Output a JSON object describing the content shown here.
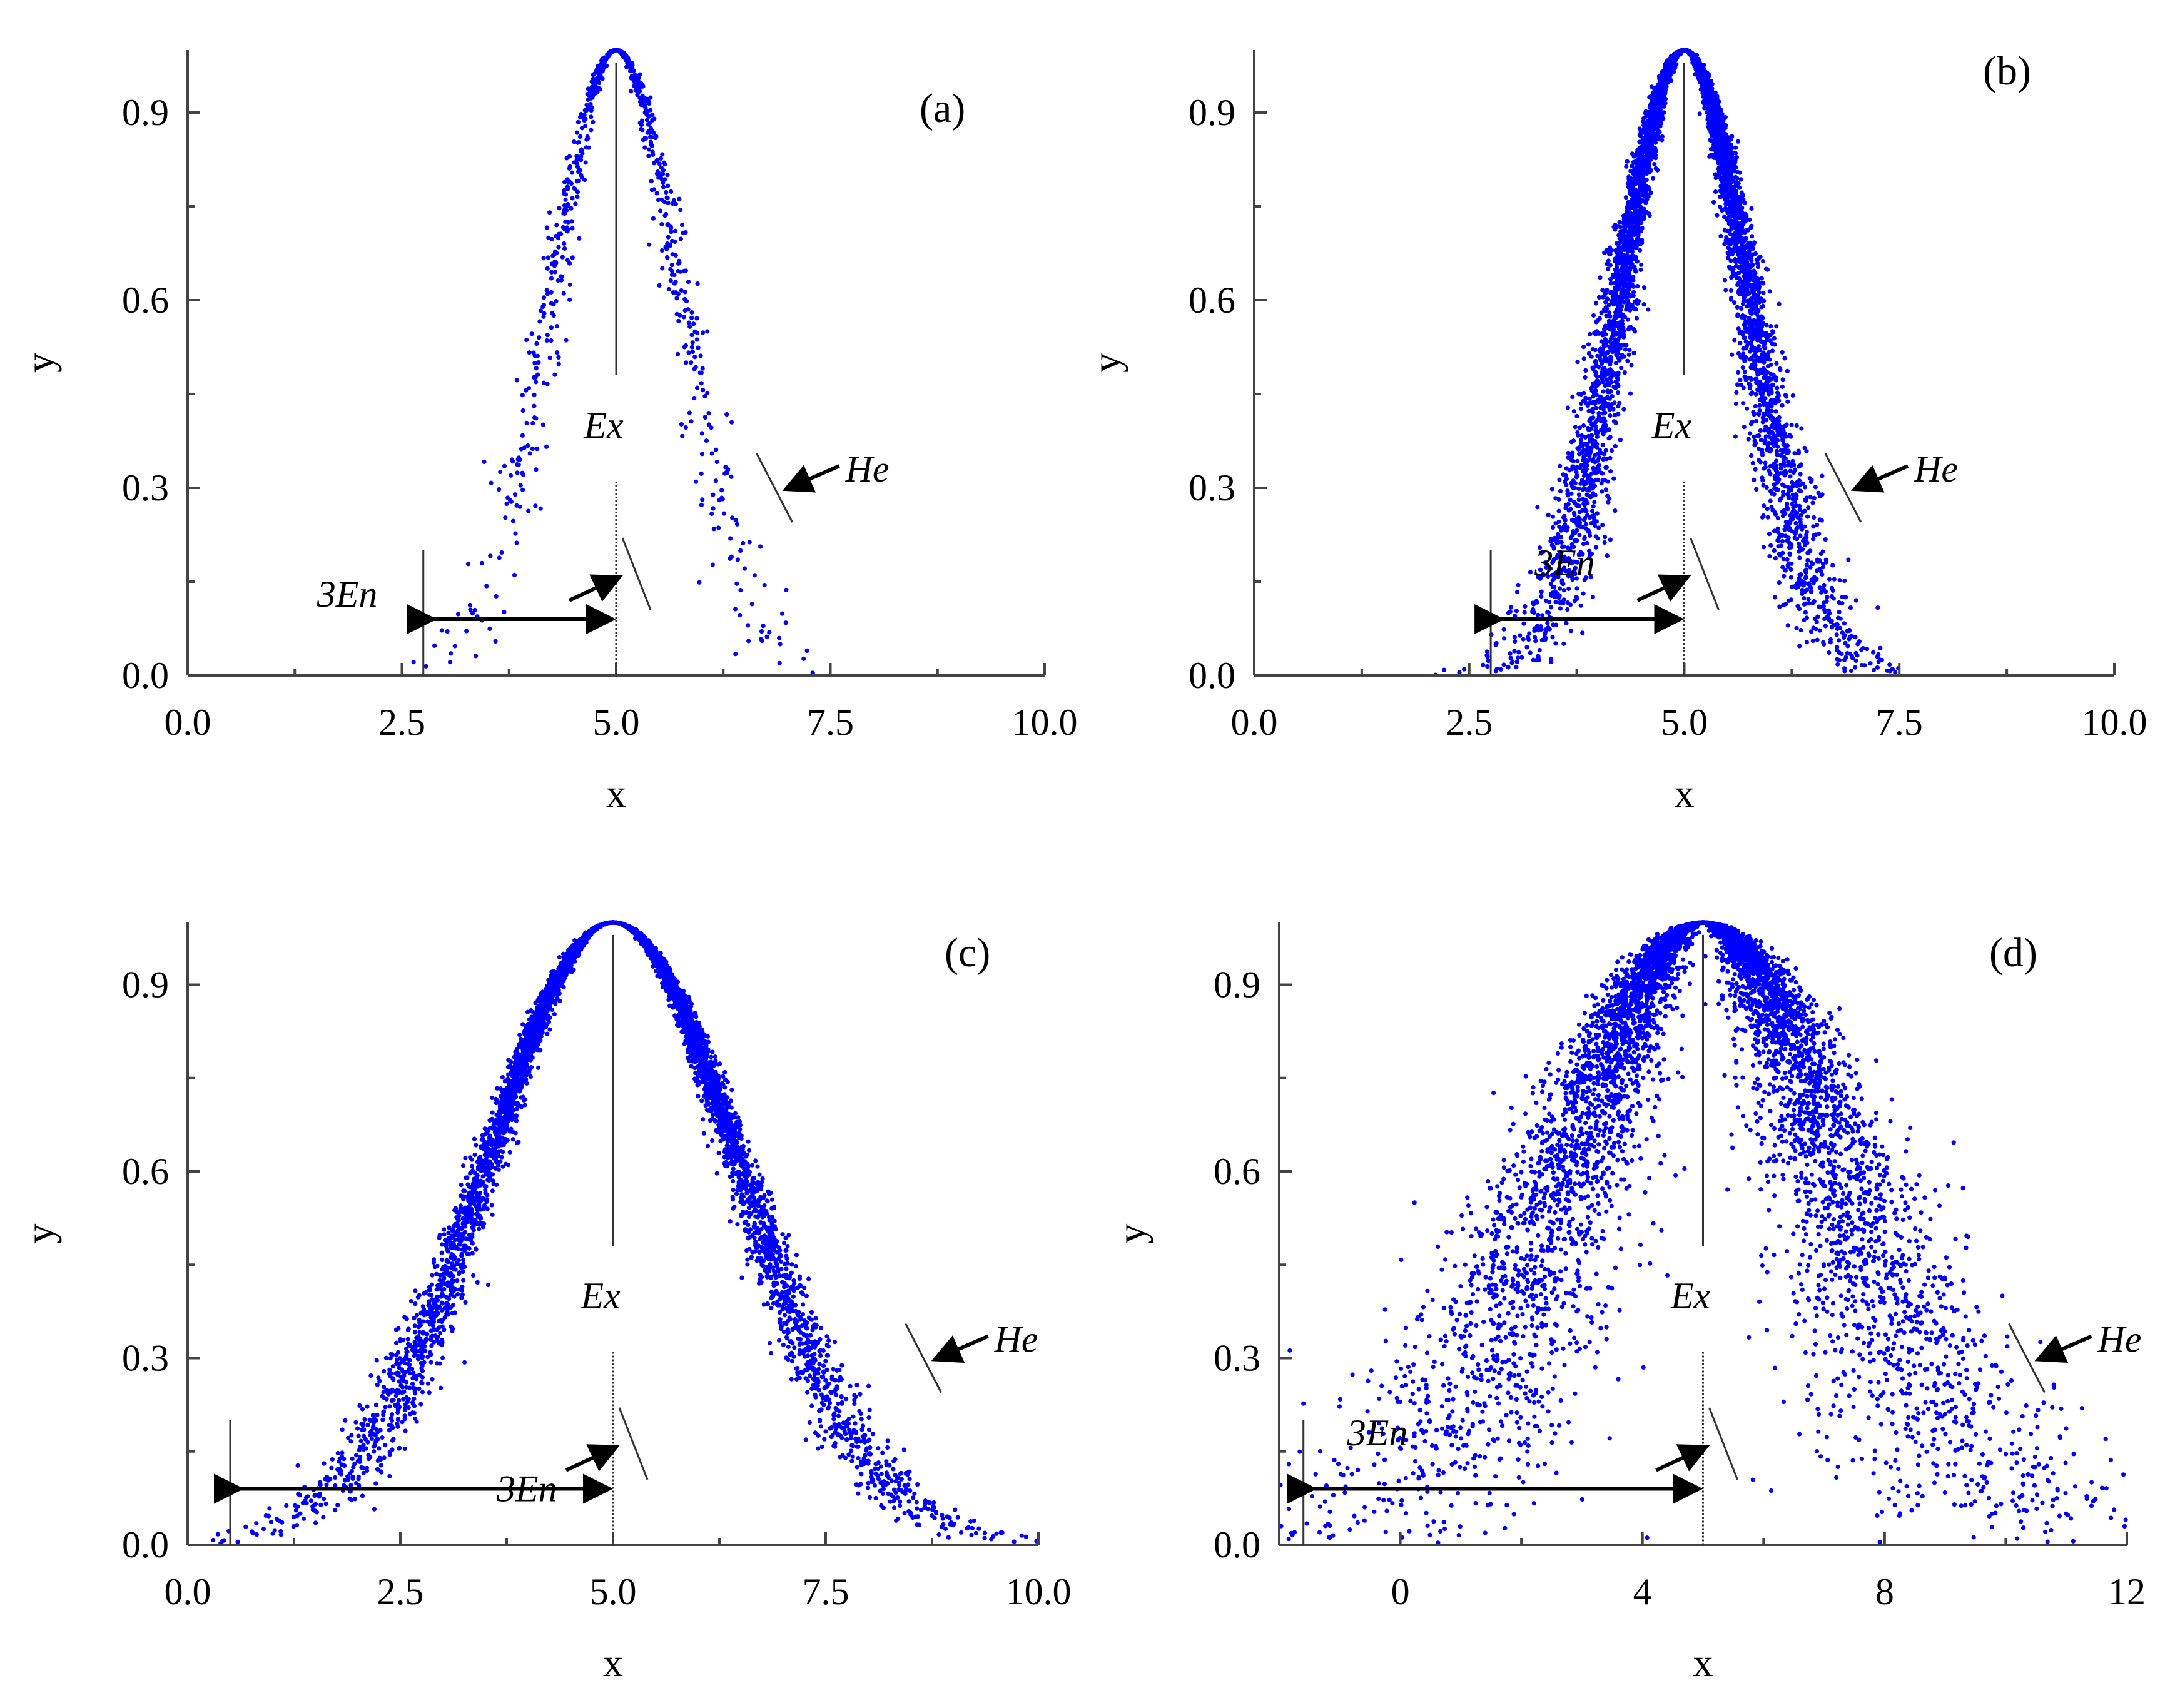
{
  "chart_data": [
    {
      "type": "scatter",
      "panel_label": "(a)",
      "xlabel": "x",
      "ylabel": "y",
      "xlim": [
        0,
        10
      ],
      "ylim": [
        0,
        1
      ],
      "xticks": [
        "0.0",
        "2.5",
        "5.0",
        "7.5",
        "10.0"
      ],
      "xtick_values": [
        0,
        2.5,
        5,
        7.5,
        10
      ],
      "yticks": [
        "0.0",
        "0.3",
        "0.6",
        "0.9"
      ],
      "ytick_values": [
        0,
        0.3,
        0.6,
        0.9
      ],
      "Ex": 5,
      "En": 0.75,
      "He": 0.1,
      "n_points": 800,
      "color": "#0000ff",
      "annotations": {
        "ex": "Ex",
        "en": "3En",
        "he": "He"
      },
      "grid": false
    },
    {
      "type": "scatter",
      "panel_label": "(b)",
      "xlabel": "x",
      "ylabel": "y",
      "xlim": [
        0,
        10
      ],
      "ylim": [
        0,
        1
      ],
      "xticks": [
        "0.0",
        "2.5",
        "5.0",
        "7.5",
        "10.0"
      ],
      "xtick_values": [
        0,
        2.5,
        5,
        7.5,
        10
      ],
      "yticks": [
        "0.0",
        "0.3",
        "0.6",
        "0.9"
      ],
      "ytick_values": [
        0,
        0.3,
        0.6,
        0.9
      ],
      "Ex": 5,
      "En": 0.75,
      "He": 0.1,
      "n_points": 6000,
      "color": "#0000ff",
      "annotations": {
        "ex": "Ex",
        "en": "3En",
        "he": "He"
      },
      "grid": false
    },
    {
      "type": "scatter",
      "panel_label": "(c)",
      "xlabel": "x",
      "ylabel": "y",
      "xlim": [
        0,
        10
      ],
      "ylim": [
        0,
        1
      ],
      "xticks": [
        "0.0",
        "2.5",
        "5.0",
        "7.5",
        "10.0"
      ],
      "xtick_values": [
        0,
        2.5,
        5,
        7.5,
        10
      ],
      "yticks": [
        "0.0",
        "0.3",
        "0.6",
        "0.9"
      ],
      "ytick_values": [
        0,
        0.3,
        0.6,
        0.9
      ],
      "Ex": 5,
      "En": 1.5,
      "He": 0.1,
      "n_points": 6000,
      "color": "#0000ff",
      "annotations": {
        "ex": "Ex",
        "en": "3En",
        "he": "He"
      },
      "grid": false
    },
    {
      "type": "scatter",
      "panel_label": "(d)",
      "xlabel": "x",
      "ylabel": "y",
      "xlim": [
        -2,
        12
      ],
      "ylim": [
        0,
        1
      ],
      "xticks": [
        "0",
        "4",
        "8",
        "12"
      ],
      "xtick_values": [
        0,
        4,
        8,
        12
      ],
      "yticks": [
        "0.0",
        "0.3",
        "0.6",
        "0.9"
      ],
      "ytick_values": [
        0,
        0.3,
        0.6,
        0.9
      ],
      "Ex": 5,
      "En": 2.2,
      "He": 0.6,
      "n_points": 6000,
      "color": "#0000ff",
      "annotations": {
        "ex": "Ex",
        "en": "3En",
        "he": "He"
      },
      "grid": false
    }
  ]
}
